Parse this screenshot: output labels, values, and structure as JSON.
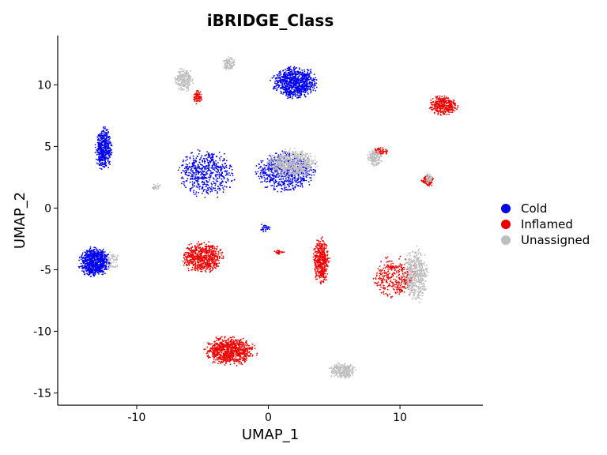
{
  "chart_data": {
    "type": "scatter",
    "title": "iBRIDGE_Class",
    "xlabel": "UMAP_1",
    "ylabel": "UMAP_2",
    "xlim": [
      -16,
      16.3
    ],
    "ylim": [
      -16,
      14
    ],
    "x_ticks": [
      -10,
      0,
      10
    ],
    "y_ticks": [
      -15,
      -10,
      -5,
      0,
      5,
      10
    ],
    "grid": false,
    "legend_position": "right",
    "series": [
      {
        "name": "Cold",
        "color": "#0000ee",
        "clusters": [
          {
            "cx": 2.0,
            "cy": 10.2,
            "rx": 1.9,
            "ry": 1.4,
            "n": 900
          },
          {
            "cx": -12.5,
            "cy": 4.8,
            "rx": 0.7,
            "ry": 1.9,
            "n": 450
          },
          {
            "cx": -13.2,
            "cy": -4.4,
            "rx": 1.3,
            "ry": 1.3,
            "n": 800
          },
          {
            "cx": -4.7,
            "cy": 2.8,
            "rx": 2.4,
            "ry": 2.1,
            "n": 550
          },
          {
            "cx": 1.3,
            "cy": 2.9,
            "rx": 2.5,
            "ry": 1.8,
            "n": 700
          },
          {
            "cx": -0.2,
            "cy": -1.6,
            "rx": 0.5,
            "ry": 0.4,
            "n": 30
          }
        ]
      },
      {
        "name": "Inflamed",
        "color": "#ee0000",
        "clusters": [
          {
            "cx": 13.3,
            "cy": 8.3,
            "rx": 1.2,
            "ry": 0.9,
            "n": 350
          },
          {
            "cx": -5.0,
            "cy": -4.0,
            "rx": 1.7,
            "ry": 1.4,
            "n": 650
          },
          {
            "cx": 4.0,
            "cy": -4.3,
            "rx": 0.7,
            "ry": 2.0,
            "n": 450
          },
          {
            "cx": -2.9,
            "cy": -11.6,
            "rx": 2.1,
            "ry": 1.3,
            "n": 850
          },
          {
            "cx": 9.6,
            "cy": -5.6,
            "rx": 1.9,
            "ry": 1.8,
            "n": 350
          },
          {
            "cx": 12.1,
            "cy": 2.2,
            "rx": 0.5,
            "ry": 0.5,
            "n": 90
          },
          {
            "cx": 8.5,
            "cy": 4.6,
            "rx": 0.6,
            "ry": 0.4,
            "n": 70
          },
          {
            "cx": -5.4,
            "cy": 9.0,
            "rx": 0.4,
            "ry": 0.6,
            "n": 70
          },
          {
            "cx": 0.8,
            "cy": -3.6,
            "rx": 0.5,
            "ry": 0.2,
            "n": 30
          }
        ]
      },
      {
        "name": "Unassigned",
        "color": "#bebebe",
        "clusters": [
          {
            "cx": -6.4,
            "cy": 10.4,
            "rx": 0.8,
            "ry": 1.0,
            "n": 220
          },
          {
            "cx": -3.0,
            "cy": 11.7,
            "rx": 0.5,
            "ry": 0.6,
            "n": 110
          },
          {
            "cx": 1.8,
            "cy": 3.6,
            "rx": 2.2,
            "ry": 1.3,
            "n": 600
          },
          {
            "cx": 8.1,
            "cy": 4.1,
            "rx": 0.6,
            "ry": 0.8,
            "n": 160
          },
          {
            "cx": 11.2,
            "cy": -5.4,
            "rx": 1.0,
            "ry": 2.4,
            "n": 500
          },
          {
            "cx": 5.6,
            "cy": -13.2,
            "rx": 1.1,
            "ry": 0.7,
            "n": 260
          },
          {
            "cx": 12.2,
            "cy": 2.4,
            "rx": 0.3,
            "ry": 0.5,
            "n": 50
          },
          {
            "cx": -11.9,
            "cy": -4.3,
            "rx": 0.6,
            "ry": 0.9,
            "n": 60
          },
          {
            "cx": -8.5,
            "cy": 1.7,
            "rx": 0.4,
            "ry": 0.3,
            "n": 25
          }
        ]
      }
    ]
  }
}
